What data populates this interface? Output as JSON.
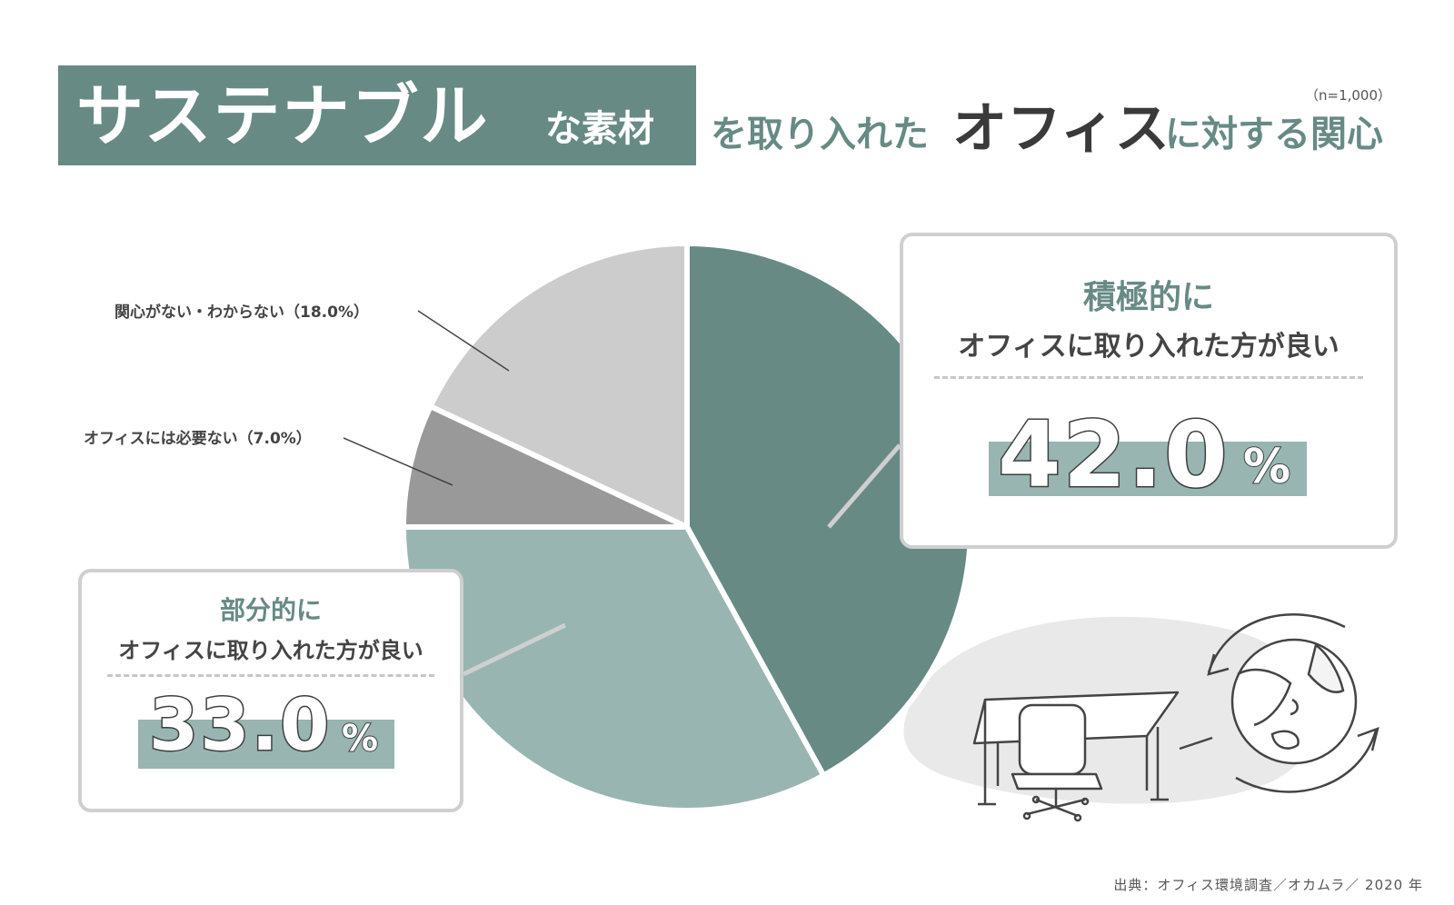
{
  "title": {
    "highlight": "サステナブル",
    "highlight_suffix": "な素材",
    "middle": "を取り入れた",
    "emphasis": "オフィス",
    "end": "に対する関心"
  },
  "sample_size": "（n=1,000）",
  "chart_data": {
    "type": "pie",
    "slices": [
      {
        "label": "積極的にオフィスに取り入れた方が良い",
        "value": 42.0,
        "color": "#678a85"
      },
      {
        "label": "部分的にオフィスに取り入れた方が良い",
        "value": 33.0,
        "color": "#98b5b1"
      },
      {
        "label": "オフィスには必要ない（7.0%）",
        "value": 7.0,
        "color": "#999999"
      },
      {
        "label": "関心がない・わからない（18.0%）",
        "value": 18.0,
        "color": "#cccccc"
      }
    ],
    "unit": "%"
  },
  "callouts": {
    "positive": {
      "head": "積極的に",
      "sub": "オフィスに取り入れた方が良い",
      "value": "42.0",
      "unit": "%"
    },
    "partial": {
      "head": "部分的に",
      "sub": "オフィスに取り入れた方が良い",
      "value": "33.0",
      "unit": "%"
    }
  },
  "source": "出典：オフィス環境調査／オカムラ／ 2020 年"
}
